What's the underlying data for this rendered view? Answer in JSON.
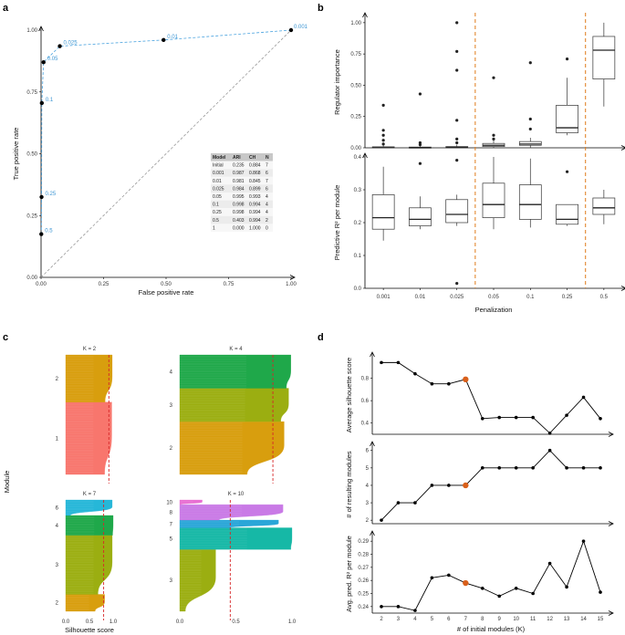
{
  "panel_labels": {
    "a": "a",
    "b": "b",
    "c": "c",
    "d": "d"
  },
  "chart_data": [
    {
      "id": "a",
      "type": "line",
      "title": "",
      "xlabel": "False positive rate",
      "ylabel": "True positive rate",
      "xlim": [
        0,
        1
      ],
      "ylim": [
        0,
        1
      ],
      "xticks": [
        "0.00",
        "0.25",
        "0.50",
        "0.75",
        "1.00"
      ],
      "yticks": [
        "0.00",
        "0.25",
        "0.50",
        "0.75",
        "1.00"
      ],
      "points": [
        {
          "label": "0.001",
          "x": 1.0,
          "y": 1.0
        },
        {
          "label": "0.01",
          "x": 0.49,
          "y": 0.96
        },
        {
          "label": "0.025",
          "x": 0.075,
          "y": 0.935
        },
        {
          "label": "0.05",
          "x": 0.01,
          "y": 0.87
        },
        {
          "label": "0.1",
          "x": 0.003,
          "y": 0.705
        },
        {
          "label": "0.25",
          "x": 0.002,
          "y": 0.325
        },
        {
          "label": "0.5",
          "x": 0.001,
          "y": 0.175
        }
      ],
      "table": {
        "columns": [
          "Model",
          "ARI",
          "CH",
          "N"
        ],
        "rows": [
          [
            "Initial",
            "0.235",
            "0.884",
            "7"
          ],
          [
            "0.001",
            "0.987",
            "0.868",
            "6"
          ],
          [
            "0.01",
            "0.981",
            "0.845",
            "7"
          ],
          [
            "0.025",
            "0.984",
            "0.899",
            "6"
          ],
          [
            "0.05",
            "0.995",
            "0.993",
            "4"
          ],
          [
            "0.1",
            "0.998",
            "0.994",
            "4"
          ],
          [
            "0.25",
            "0.998",
            "0.994",
            "4"
          ],
          [
            "0.5",
            "0.403",
            "0.994",
            "2"
          ],
          [
            "1",
            "0.000",
            "1.000",
            "0"
          ]
        ]
      }
    },
    {
      "id": "b",
      "type": "box",
      "xlabel": "Penalization",
      "categories": [
        "0.001",
        "0.01",
        "0.025",
        "0.05",
        "0.1",
        "0.25",
        "0.5"
      ],
      "top": {
        "ylabel": "Regulator importance",
        "ylim": [
          0,
          1.05
        ],
        "yticks": [
          "0.00",
          "0.25",
          "0.50",
          "0.75",
          "1.00"
        ],
        "boxes": [
          {
            "q1": 0.0,
            "med": 0.002,
            "q3": 0.008,
            "wlo": 0.0,
            "whi": 0.02,
            "out": [
              0.03,
              0.06,
              0.1,
              0.14,
              0.34
            ]
          },
          {
            "q1": 0.0,
            "med": 0.002,
            "q3": 0.006,
            "wlo": 0.0,
            "whi": 0.015,
            "out": [
              0.025,
              0.04,
              0.43
            ]
          },
          {
            "q1": 0.0,
            "med": 0.003,
            "q3": 0.01,
            "wlo": 0.0,
            "whi": 0.025,
            "out": [
              0.04,
              0.07,
              0.22,
              0.62,
              0.77,
              1.0
            ]
          },
          {
            "q1": 0.01,
            "med": 0.02,
            "q3": 0.035,
            "wlo": 0.0,
            "whi": 0.06,
            "out": [
              0.07,
              0.1,
              0.56
            ]
          },
          {
            "q1": 0.02,
            "med": 0.03,
            "q3": 0.05,
            "wlo": 0.0,
            "whi": 0.08,
            "out": [
              0.15,
              0.23,
              0.68
            ]
          },
          {
            "q1": 0.12,
            "med": 0.16,
            "q3": 0.34,
            "wlo": 0.1,
            "whi": 0.56,
            "out": [
              0.71
            ]
          },
          {
            "q1": 0.55,
            "med": 0.78,
            "q3": 0.89,
            "wlo": 0.33,
            "whi": 1.0,
            "out": []
          }
        ]
      },
      "bottom": {
        "ylabel": "Predictive R² per module",
        "ylim": [
          0,
          0.4
        ],
        "yticks": [
          "0.0",
          "0.1",
          "0.2",
          "0.3",
          "0.4"
        ],
        "boxes": [
          {
            "q1": 0.18,
            "med": 0.215,
            "q3": 0.285,
            "wlo": 0.145,
            "whi": 0.37,
            "out": []
          },
          {
            "q1": 0.19,
            "med": 0.21,
            "q3": 0.245,
            "wlo": 0.18,
            "whi": 0.28,
            "out": [
              0.38
            ]
          },
          {
            "q1": 0.2,
            "med": 0.225,
            "q3": 0.27,
            "wlo": 0.19,
            "whi": 0.285,
            "out": [
              0.39,
              0.015
            ]
          },
          {
            "q1": 0.215,
            "med": 0.255,
            "q3": 0.32,
            "wlo": 0.18,
            "whi": 0.4,
            "out": []
          },
          {
            "q1": 0.21,
            "med": 0.255,
            "q3": 0.315,
            "wlo": 0.185,
            "whi": 0.395,
            "out": []
          },
          {
            "q1": 0.195,
            "med": 0.21,
            "q3": 0.255,
            "wlo": 0.19,
            "whi": 0.255,
            "out": [
              0.355
            ]
          },
          {
            "q1": 0.225,
            "med": 0.245,
            "q3": 0.275,
            "wlo": 0.195,
            "whi": 0.3,
            "out": []
          }
        ]
      }
    },
    {
      "id": "c",
      "type": "silhouette",
      "xlabel": "Silhouette score",
      "ylabel": "Module",
      "xticks": [
        "0.0",
        "0.5",
        "1.0"
      ],
      "panels": [
        {
          "title": "K = 2",
          "mean": 0.91,
          "clusters": [
            {
              "id": "1",
              "color": "#f8766d",
              "n": 52,
              "lo": 0.82,
              "hi": 0.97
            },
            {
              "id": "2",
              "color": "#d89e0e",
              "n": 34,
              "lo": 0.83,
              "hi": 0.98
            }
          ]
        },
        {
          "title": "K = 4",
          "mean": 0.83,
          "clusters": [
            {
              "id": "2",
              "color": "#d89e0e",
              "n": 38,
              "lo": 0.6,
              "hi": 0.93
            },
            {
              "id": "3",
              "color": "#9bae11",
              "n": 24,
              "lo": 0.9,
              "hi": 0.97
            },
            {
              "id": "4",
              "color": "#1fa84a",
              "n": 24,
              "lo": 0.95,
              "hi": 0.99
            }
          ]
        },
        {
          "title": "K = 7",
          "mean": 0.8,
          "clusters": [
            {
              "id": "2",
              "color": "#d89e0e",
              "n": 12,
              "lo": 0.62,
              "hi": 0.82
            },
            {
              "id": "3",
              "color": "#9bae11",
              "n": 42,
              "lo": 0.68,
              "hi": 0.98
            },
            {
              "id": "4",
              "color": "#1fa84a",
              "n": 14,
              "lo": 0.99,
              "hi": 1.0
            },
            {
              "id": "6",
              "color": "#26b7d8",
              "n": 11,
              "lo": 0.1,
              "hi": 0.98
            }
          ]
        },
        {
          "title": "K = 10",
          "mean": 0.45,
          "clusters": [
            {
              "id": "3",
              "color": "#9bae11",
              "n": 40,
              "lo": 0.05,
              "hi": 0.32
            },
            {
              "id": "5",
              "color": "#16b8a6",
              "n": 14,
              "lo": 0.99,
              "hi": 1.0
            },
            {
              "id": "7",
              "color": "#2aa6d8",
              "n": 5,
              "lo": 0.45,
              "hi": 0.88
            },
            {
              "id": "8",
              "color": "#c97ae6",
              "n": 10,
              "lo": 0.35,
              "hi": 0.92
            },
            {
              "id": "10",
              "color": "#e86fd2",
              "n": 3,
              "lo": 0.0,
              "hi": 0.2
            }
          ]
        }
      ]
    },
    {
      "id": "d",
      "type": "line",
      "xlabel": "# of initial modules (K)",
      "x": [
        2,
        3,
        4,
        5,
        6,
        7,
        8,
        9,
        10,
        11,
        12,
        13,
        14,
        15
      ],
      "highlight_x": 7,
      "highlight_color": "#d9601b",
      "panels": [
        {
          "ylabel": "Average silhouette score",
          "ylim": [
            0.3,
            1.0
          ],
          "yticks": [
            "0.4",
            "0.6",
            "0.8"
          ],
          "y": [
            0.94,
            0.94,
            0.84,
            0.75,
            0.75,
            0.79,
            0.44,
            0.45,
            0.45,
            0.45,
            0.31,
            0.47,
            0.63,
            0.44
          ]
        },
        {
          "ylabel": "# of resulting modules",
          "ylim": [
            1.8,
            6.3
          ],
          "yticks": [
            "2",
            "3",
            "4",
            "5",
            "6"
          ],
          "y": [
            2,
            3,
            3,
            4,
            4,
            4,
            5,
            5,
            5,
            5,
            6,
            5,
            5,
            5
          ]
        },
        {
          "ylabel": "Avg. pred. R² per module",
          "ylim": [
            0.235,
            0.295
          ],
          "yticks": [
            "0.24",
            "0.25",
            "0.26",
            "0.27",
            "0.28",
            "0.29"
          ],
          "y": [
            0.24,
            0.24,
            0.237,
            0.262,
            0.264,
            0.258,
            0.254,
            0.248,
            0.254,
            0.25,
            0.273,
            0.255,
            0.29,
            0.251
          ]
        }
      ]
    }
  ]
}
